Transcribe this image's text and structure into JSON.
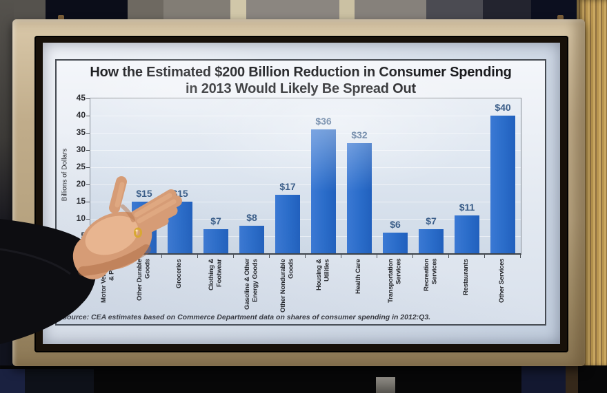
{
  "photo": {
    "backdrop": {
      "wall_color": "#827d75",
      "pillar_color": "#d1c7a9",
      "dark_panel_color": "#0b0d19",
      "curtain_color": "#c3a05c"
    },
    "tv": {
      "frame_color": "#c0ac8a",
      "bezel_color": "#171009"
    },
    "presenter": {
      "gesture": "open-palm-hand",
      "sleeve_color": "#0d0d11",
      "skin_color": "#d69c76",
      "ring_color": "#d8a833"
    }
  },
  "slide": {
    "title_line1": "How the Estimated $200 Billion Reduction in Consumer Spending",
    "title_line2": "in 2013 Would Likely Be Spread Out",
    "source_note": "Source: CEA estimates based on Commerce Department data on shares of consumer spending in 2012:Q3."
  },
  "chart_data": {
    "type": "bar",
    "title": "How the Estimated $200 Billion Reduction in Consumer Spending in 2013 Would Likely Be Spread Out",
    "ylabel": "Billions of Dollars",
    "xlabel": "",
    "ylim": [
      0,
      45
    ],
    "yticks": [
      45,
      40,
      35,
      30,
      25,
      20,
      15,
      10,
      5,
      0
    ],
    "grid": "horizontal",
    "legend": "none",
    "bar_color": "#2a6cc9",
    "categories": [
      "Motor Vehicles\n& Parts",
      "Other Durable\nGoods",
      "Groceries",
      "Clothing &\nFootwear",
      "Gasoline & Other\nEnergy Goods",
      "Other Nondurable\nGoods",
      "Housing &\nUtilities",
      "Health Care",
      "Transportation\nServices",
      "Recreation\nServices",
      "Restaurants",
      "Other Services"
    ],
    "values": [
      null,
      15,
      15,
      7,
      8,
      17,
      36,
      32,
      6,
      7,
      11,
      40
    ],
    "bar_labels": [
      "",
      "$15",
      "$15",
      "$7",
      "$8",
      "$17",
      "$36",
      "$32",
      "$6",
      "$7",
      "$11",
      "$40"
    ],
    "first_bar_occluded_by_hand": true
  }
}
